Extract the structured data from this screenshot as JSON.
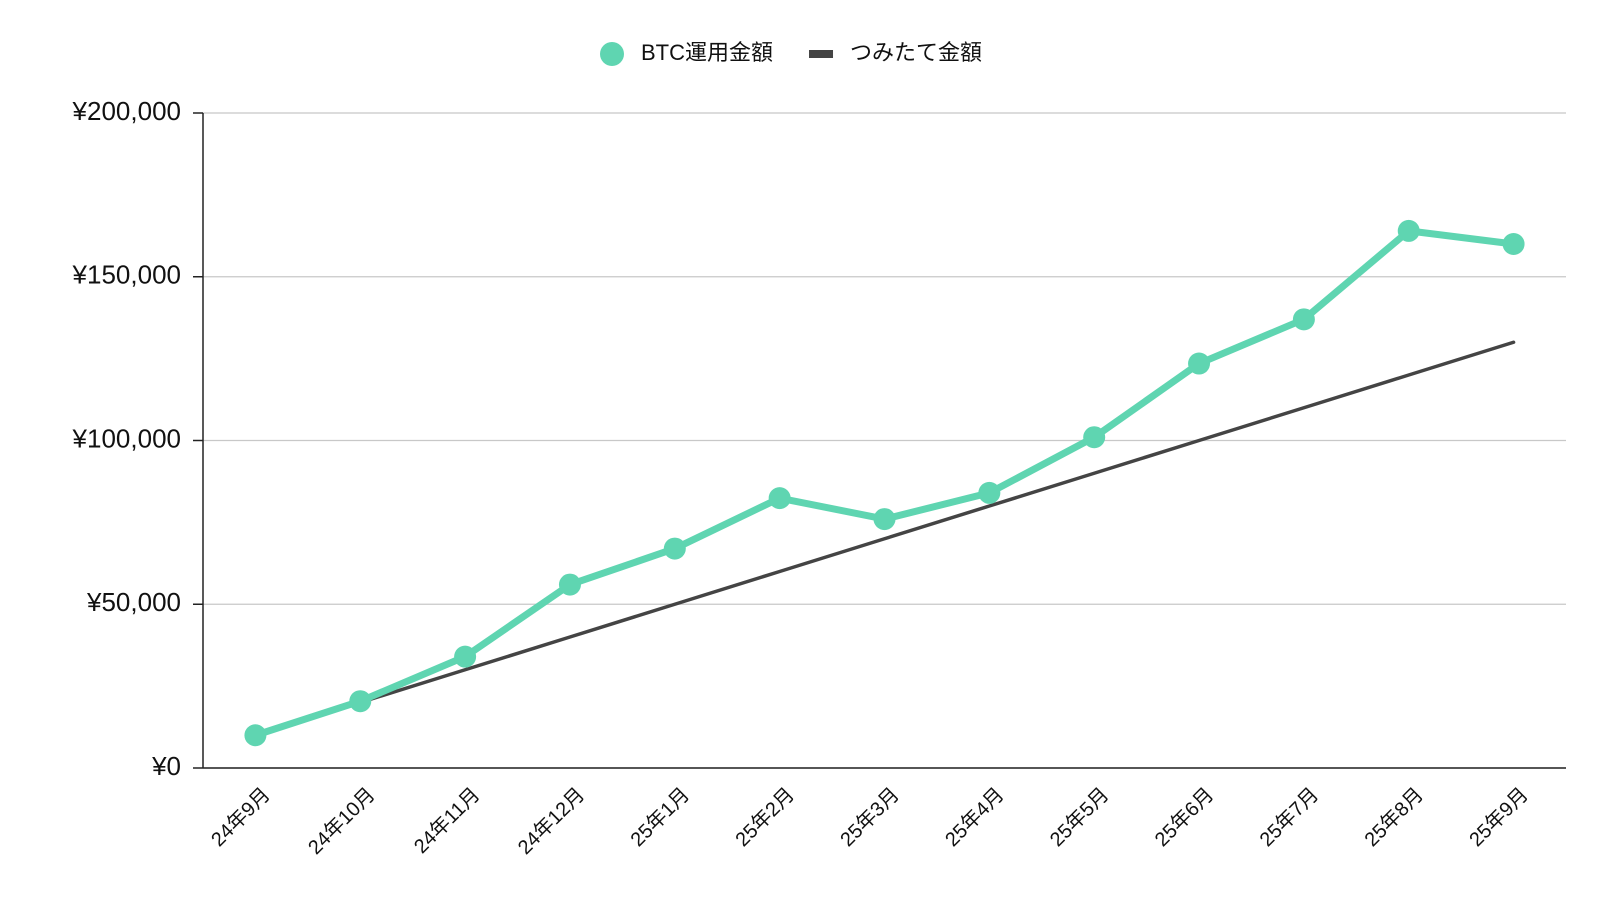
{
  "chart_data": {
    "type": "line",
    "categories": [
      "24年9月",
      "24年10月",
      "24年11月",
      "24年12月",
      "25年1月",
      "25年2月",
      "25年3月",
      "25年4月",
      "25年5月",
      "25年6月",
      "25年7月",
      "25年8月",
      "25年9月"
    ],
    "series": [
      {
        "name": "BTC運用金額",
        "color": "#5fd5b1",
        "marker": "circle",
        "values": [
          10000,
          20400,
          34000,
          56000,
          67000,
          82400,
          76000,
          84000,
          101000,
          123500,
          137000,
          164000,
          160000
        ]
      },
      {
        "name": "つみたて金額",
        "color": "#444444",
        "marker": "none",
        "values": [
          10000,
          20000,
          30000,
          40000,
          50000,
          60000,
          70000,
          80000,
          90000,
          100000,
          110000,
          120000,
          130000
        ]
      }
    ],
    "ylim": [
      0,
      200000
    ],
    "yticks": [
      {
        "value": 0,
        "label": "¥0"
      },
      {
        "value": 50000,
        "label": "¥50,000"
      },
      {
        "value": 100000,
        "label": "¥100,000"
      },
      {
        "value": 150000,
        "label": "¥150,000"
      },
      {
        "value": 200000,
        "label": "¥200,000"
      }
    ],
    "grid": true,
    "legend": "top"
  }
}
